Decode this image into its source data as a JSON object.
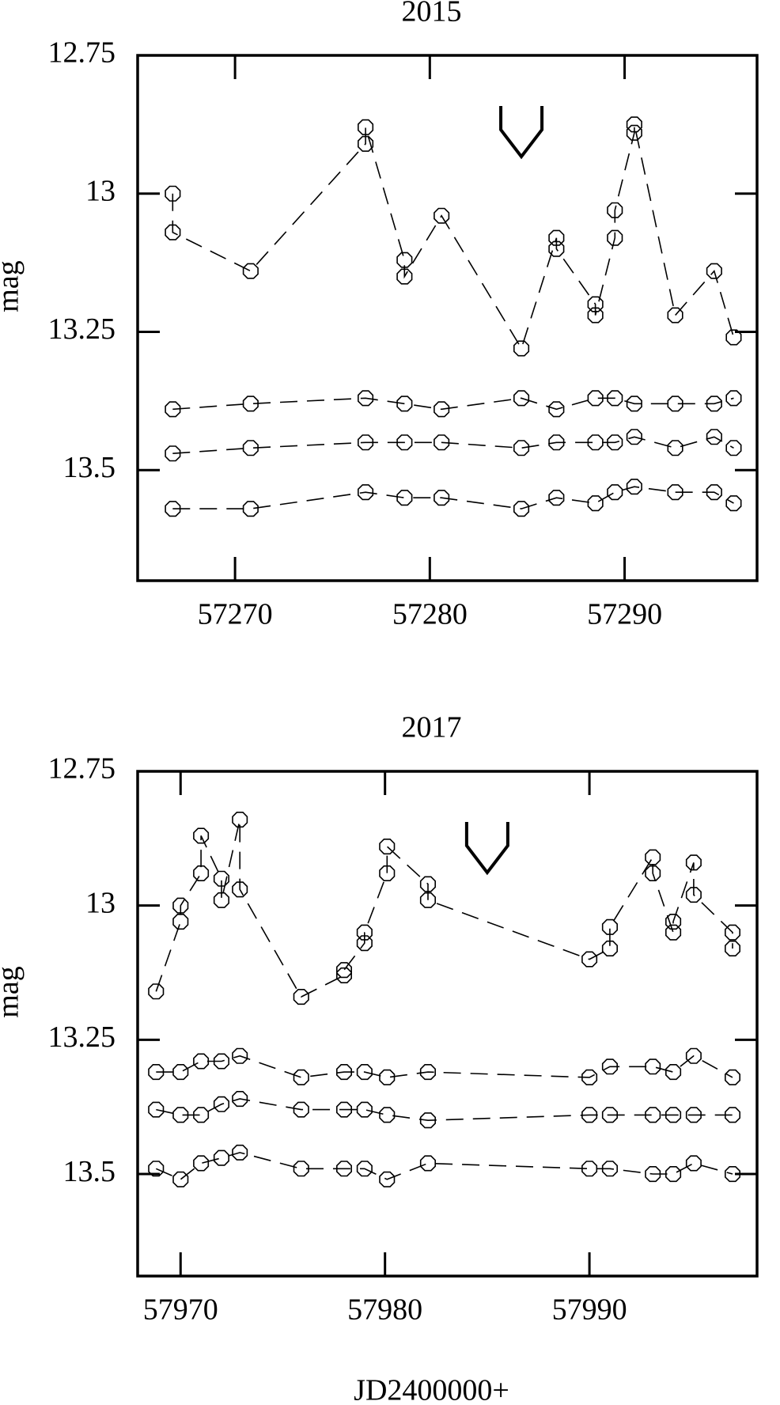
{
  "chart_data": [
    {
      "type": "line",
      "title": "2015",
      "ylabel": "mag",
      "color": "#000000",
      "inverted": true,
      "xlim": [
        57265,
        57296.8
      ],
      "xticks": [
        57270,
        57280,
        57290
      ],
      "ylim": [
        12.75,
        13.7
      ],
      "yticks": [
        12.75,
        13,
        13.25,
        13.5
      ],
      "marker_x": 57284.7,
      "series": [
        {
          "x": [
            57266.8,
            57266.8,
            57270.8,
            57276.7,
            57276.7,
            57278.7,
            57278.7,
            57280.6,
            57284.7,
            57286.5,
            57286.5,
            57288.5,
            57288.5,
            57289.5,
            57289.5,
            57290.5,
            57290.5,
            57292.6,
            57294.6,
            57295.6
          ],
          "values": [
            13.0,
            13.07,
            13.14,
            12.91,
            12.88,
            13.12,
            13.15,
            13.04,
            13.28,
            13.08,
            13.1,
            13.2,
            13.22,
            13.08,
            13.03,
            12.89,
            12.875,
            13.22,
            13.14,
            13.26
          ]
        },
        {
          "x": [
            57266.8,
            57270.8,
            57276.7,
            57278.7,
            57280.6,
            57284.7,
            57286.5,
            57288.5,
            57289.5,
            57290.5,
            57292.6,
            57294.6,
            57295.6
          ],
          "values": [
            13.39,
            13.38,
            13.37,
            13.38,
            13.39,
            13.37,
            13.39,
            13.37,
            13.37,
            13.38,
            13.38,
            13.38,
            13.37
          ]
        },
        {
          "x": [
            57266.8,
            57270.8,
            57276.7,
            57278.7,
            57280.6,
            57284.7,
            57286.5,
            57288.5,
            57289.5,
            57290.5,
            57292.6,
            57294.6,
            57295.6
          ],
          "values": [
            13.47,
            13.46,
            13.45,
            13.45,
            13.45,
            13.46,
            13.45,
            13.45,
            13.45,
            13.44,
            13.46,
            13.44,
            13.46
          ]
        },
        {
          "x": [
            57266.8,
            57270.8,
            57276.7,
            57278.7,
            57280.6,
            57284.7,
            57286.5,
            57288.5,
            57289.5,
            57290.5,
            57292.6,
            57294.6,
            57295.6
          ],
          "values": [
            13.57,
            13.57,
            13.54,
            13.55,
            13.55,
            13.57,
            13.55,
            13.56,
            13.54,
            13.53,
            13.54,
            13.54,
            13.56
          ]
        }
      ]
    },
    {
      "type": "line",
      "title": "2017",
      "ylabel": "mag",
      "xlabel": "JD2400000+",
      "color": "#000000",
      "inverted": true,
      "xlim": [
        57967.9,
        57998.2
      ],
      "xticks": [
        57970,
        57980,
        57990
      ],
      "ylim": [
        12.75,
        13.69
      ],
      "yticks": [
        12.75,
        13,
        13.25,
        13.5
      ],
      "marker_x": 57985,
      "series": [
        {
          "x": [
            57968.8,
            57970.0,
            57970.0,
            57971.0,
            57971.0,
            57972.0,
            57972.0,
            57972.9,
            57972.9,
            57975.9,
            57978.0,
            57978.0,
            57979.0,
            57979.0,
            57980.1,
            57980.1,
            57982.1,
            57982.1,
            57990.0,
            57991.0,
            57991.0,
            57993.1,
            57993.1,
            57994.1,
            57994.1,
            57995.1,
            57995.1,
            57997.0,
            57997.0
          ],
          "values": [
            13.16,
            13.03,
            13.0,
            12.94,
            12.87,
            12.95,
            12.99,
            12.84,
            12.97,
            13.17,
            13.13,
            13.12,
            13.07,
            13.05,
            12.94,
            12.89,
            12.96,
            12.99,
            13.1,
            13.08,
            13.04,
            12.91,
            12.94,
            13.05,
            13.03,
            12.92,
            12.98,
            13.05,
            13.08
          ]
        },
        {
          "x": [
            57968.8,
            57970.0,
            57971.0,
            57972.0,
            57972.9,
            57975.9,
            57978.0,
            57979.0,
            57980.1,
            57982.1,
            57990.0,
            57991.0,
            57993.1,
            57994.1,
            57995.1,
            57997.0
          ],
          "values": [
            13.31,
            13.31,
            13.29,
            13.29,
            13.28,
            13.32,
            13.31,
            13.31,
            13.32,
            13.31,
            13.32,
            13.3,
            13.3,
            13.31,
            13.28,
            13.32
          ]
        },
        {
          "x": [
            57968.8,
            57970.0,
            57971.0,
            57972.0,
            57972.9,
            57975.9,
            57978.0,
            57979.0,
            57980.1,
            57982.1,
            57990.0,
            57991.0,
            57993.1,
            57994.1,
            57995.1,
            57997.0
          ],
          "values": [
            13.38,
            13.39,
            13.39,
            13.37,
            13.36,
            13.38,
            13.38,
            13.38,
            13.39,
            13.4,
            13.39,
            13.39,
            13.39,
            13.39,
            13.39,
            13.39
          ]
        },
        {
          "x": [
            57968.8,
            57970.0,
            57971.0,
            57972.0,
            57972.9,
            57975.9,
            57978.0,
            57979.0,
            57980.1,
            57982.1,
            57990.0,
            57991.0,
            57993.1,
            57994.1,
            57995.1,
            57997.0
          ],
          "values": [
            13.49,
            13.51,
            13.48,
            13.47,
            13.46,
            13.49,
            13.49,
            13.49,
            13.51,
            13.48,
            13.49,
            13.49,
            13.5,
            13.5,
            13.48,
            13.5
          ]
        }
      ]
    }
  ]
}
